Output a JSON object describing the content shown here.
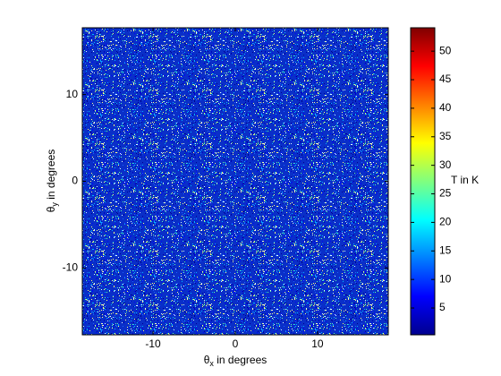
{
  "chart_data": {
    "type": "image",
    "xlabel": [
      "θ",
      "x",
      " in degrees"
    ],
    "ylabel": [
      "θ",
      "y",
      " in degrees"
    ],
    "xlim": [
      -18.6,
      18.6
    ],
    "xticks": [
      -10,
      0,
      10
    ],
    "ylim": [
      -17.7,
      17.7
    ],
    "yticks": [
      -10,
      0,
      10
    ],
    "colormap": "jet",
    "colorbar": {
      "label": "T in K",
      "clim": [
        0.3,
        54.1
      ],
      "ticks": [
        5,
        10,
        15,
        20,
        25,
        30,
        35,
        40,
        45,
        50
      ]
    }
  }
}
